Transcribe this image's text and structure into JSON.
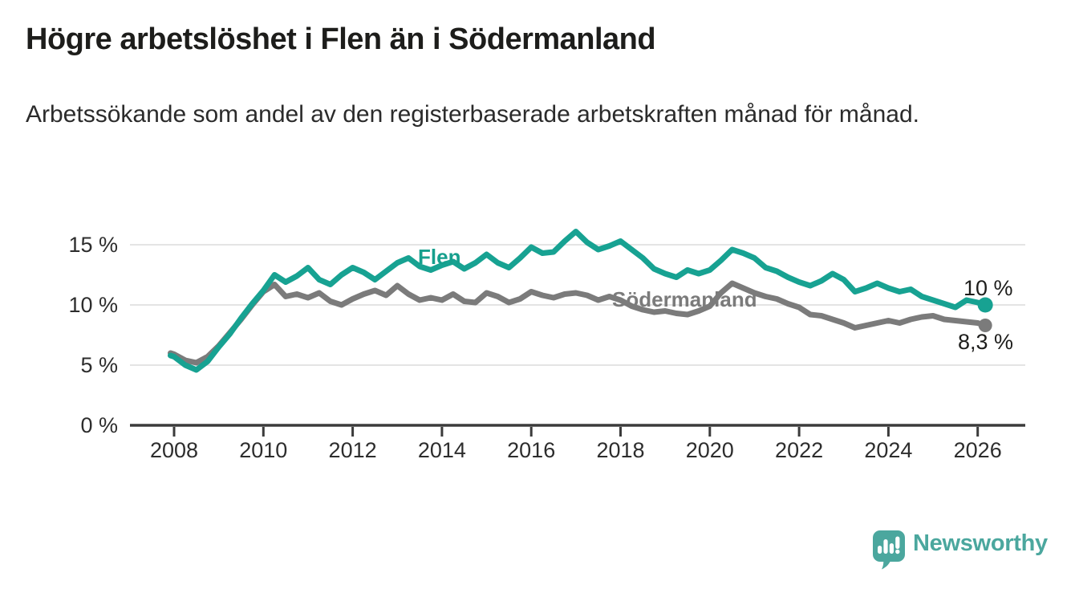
{
  "title": "Högre arbetslöshet i Flen än i Södermanland",
  "subtitle": "Arbetssökande som andel av den registerbaserade arbetskraften månad för månad.",
  "branding": {
    "logo_text": "Newsworthy"
  },
  "colors": {
    "flen": "#17a292",
    "sodermanland": "#7b7b7b",
    "grid": "#e4e4e4",
    "axis": "#3b3b3b",
    "text": "#2d2d2d",
    "title_text": "#1d1d1b",
    "brand": "#4ba79e"
  },
  "chart_data": {
    "type": "line",
    "title": "Högre arbetslöshet i Flen än i Södermanland",
    "subtitle": "Arbetssökande som andel av den registerbaserade arbetskraften månad för månad.",
    "unit": "%",
    "xlabel": "",
    "ylabel": "",
    "xlim": [
      2007.8,
      2027.1
    ],
    "ylim": [
      0,
      17
    ],
    "grid": "horizontal",
    "legend": "inline-labels",
    "yticks": [
      {
        "value": 0,
        "label": "0 %"
      },
      {
        "value": 5,
        "label": "5 %"
      },
      {
        "value": 10,
        "label": "10 %"
      },
      {
        "value": 15,
        "label": "15 %"
      }
    ],
    "xticks": [
      {
        "value": 2008,
        "label": "2008"
      },
      {
        "value": 2010,
        "label": "2010"
      },
      {
        "value": 2012,
        "label": "2012"
      },
      {
        "value": 2014,
        "label": "2014"
      },
      {
        "value": 2016,
        "label": "2016"
      },
      {
        "value": 2018,
        "label": "2018"
      },
      {
        "value": 2020,
        "label": "2020"
      },
      {
        "value": 2022,
        "label": "2022"
      },
      {
        "value": 2024,
        "label": "2024"
      },
      {
        "value": 2026,
        "label": "2026"
      }
    ],
    "x": [
      2007.92,
      2008,
      2008.25,
      2008.5,
      2008.75,
      2009,
      2009.25,
      2009.5,
      2009.75,
      2010,
      2010.25,
      2010.5,
      2010.75,
      2011,
      2011.25,
      2011.5,
      2011.75,
      2012,
      2012.25,
      2012.5,
      2012.75,
      2013,
      2013.25,
      2013.5,
      2013.75,
      2014,
      2014.25,
      2014.5,
      2014.75,
      2015,
      2015.25,
      2015.5,
      2015.75,
      2016,
      2016.25,
      2016.5,
      2016.75,
      2017,
      2017.25,
      2017.5,
      2017.75,
      2018,
      2018.25,
      2018.5,
      2018.75,
      2019,
      2019.25,
      2019.5,
      2019.75,
      2020,
      2020.25,
      2020.5,
      2020.75,
      2021,
      2021.25,
      2021.5,
      2021.75,
      2022,
      2022.25,
      2022.5,
      2022.75,
      2023,
      2023.25,
      2023.5,
      2023.75,
      2024,
      2024.25,
      2024.5,
      2024.75,
      2025,
      2025.25,
      2025.5,
      2025.75,
      2026,
      2026.17
    ],
    "series": [
      {
        "name": "Flen",
        "color": "#17a292",
        "end_label": "10 %",
        "end_value": 10.0,
        "values": [
          5.8,
          5.7,
          5.0,
          4.6,
          5.3,
          6.5,
          7.6,
          8.9,
          10.1,
          11.2,
          12.5,
          11.9,
          12.4,
          13.1,
          12.1,
          11.7,
          12.5,
          13.1,
          12.7,
          12.1,
          12.8,
          13.5,
          13.9,
          13.2,
          12.9,
          13.3,
          13.6,
          13.0,
          13.5,
          14.2,
          13.5,
          13.1,
          13.9,
          14.8,
          14.3,
          14.4,
          15.3,
          16.1,
          15.2,
          14.6,
          14.9,
          15.3,
          14.6,
          13.9,
          13.0,
          12.6,
          12.3,
          12.9,
          12.6,
          12.9,
          13.7,
          14.6,
          14.3,
          13.9,
          13.1,
          12.8,
          12.3,
          11.9,
          11.6,
          12.0,
          12.6,
          12.1,
          11.1,
          11.4,
          11.8,
          11.4,
          11.1,
          11.3,
          10.7,
          10.4,
          10.1,
          9.8,
          10.4,
          10.2,
          10.0
        ]
      },
      {
        "name": "Södermanland",
        "color": "#7b7b7b",
        "end_label": "8,3 %",
        "end_value": 8.3,
        "values": [
          6.0,
          5.9,
          5.4,
          5.2,
          5.7,
          6.6,
          7.7,
          8.8,
          10.0,
          11.1,
          11.7,
          10.7,
          10.9,
          10.6,
          11.0,
          10.3,
          10.0,
          10.5,
          10.9,
          11.2,
          10.8,
          11.6,
          10.9,
          10.4,
          10.6,
          10.4,
          10.9,
          10.3,
          10.2,
          11.0,
          10.7,
          10.2,
          10.5,
          11.1,
          10.8,
          10.6,
          10.9,
          11.0,
          10.8,
          10.4,
          10.7,
          10.4,
          9.9,
          9.6,
          9.4,
          9.5,
          9.3,
          9.2,
          9.5,
          9.9,
          11.0,
          11.8,
          11.4,
          11.0,
          10.7,
          10.5,
          10.1,
          9.8,
          9.2,
          9.1,
          8.8,
          8.5,
          8.1,
          8.3,
          8.5,
          8.7,
          8.5,
          8.8,
          9.0,
          9.1,
          8.8,
          8.7,
          8.6,
          8.5,
          8.3
        ]
      }
    ]
  }
}
